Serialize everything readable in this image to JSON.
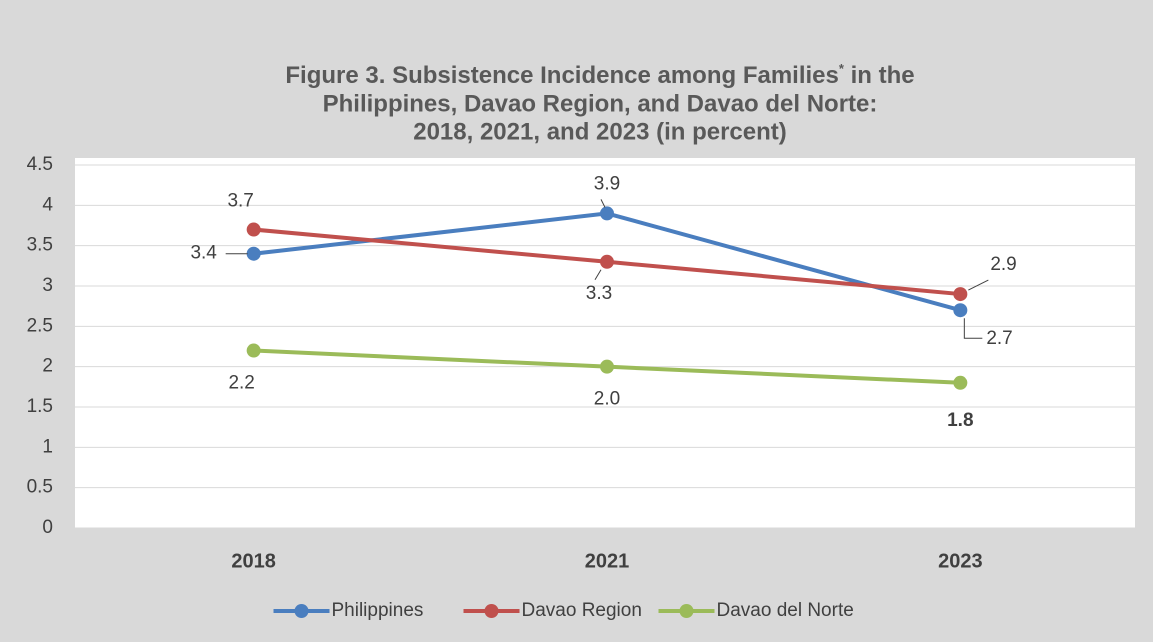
{
  "chart_data": {
    "type": "line",
    "title": [
      "Figure 3. Subsistence Incidence among Families* in the",
      "Philippines, Davao Region, and Davao del Norte:",
      "2018, 2021, and 2023 (in percent)"
    ],
    "categories": [
      "2018",
      "2021",
      "2023"
    ],
    "series": [
      {
        "name": "Philippines",
        "color": "#4a7ebf",
        "values": [
          3.4,
          3.9,
          2.7
        ],
        "value_labels": [
          "3.4",
          "3.9",
          "2.7"
        ]
      },
      {
        "name": "Davao Region",
        "color": "#c0504d",
        "values": [
          3.7,
          3.3,
          2.9
        ],
        "value_labels": [
          "3.7",
          "3.3",
          "2.9"
        ]
      },
      {
        "name": "Davao del Norte",
        "color": "#9bbb59",
        "values": [
          2.2,
          2.0,
          1.8
        ],
        "value_labels": [
          "2.2",
          "2.0",
          "1.8"
        ]
      }
    ],
    "ylim": [
      0,
      4.5
    ],
    "yticks": [
      0,
      0.5,
      1,
      1.5,
      2,
      2.5,
      3,
      3.5,
      4,
      4.5
    ],
    "grid": true,
    "legend": "bottom"
  }
}
